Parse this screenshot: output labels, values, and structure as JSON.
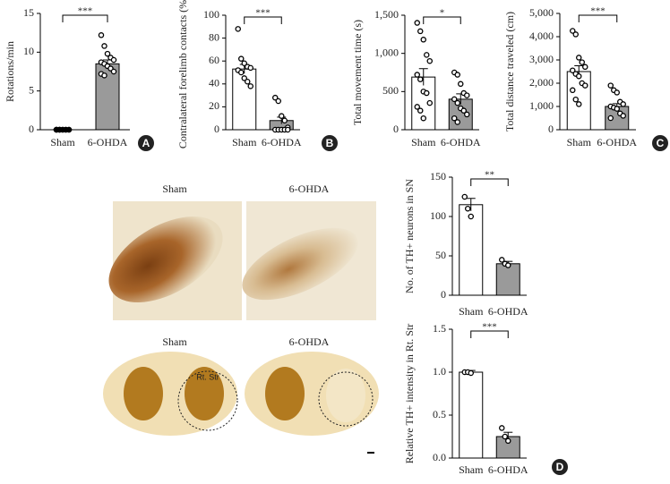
{
  "chart_data": [
    {
      "type": "bar",
      "ylabel": "Rotations/min",
      "categories": [
        "Sham",
        "6-OHDA"
      ],
      "values": [
        0,
        8.5
      ],
      "errors": [
        0,
        0.5
      ],
      "points": [
        [
          0,
          0,
          0,
          0,
          0,
          0,
          0,
          0,
          0,
          0,
          0,
          0
        ],
        [
          12.2,
          10.8,
          9.8,
          9.3,
          9.0,
          8.7,
          8.5,
          8.2,
          7.9,
          7.5,
          7.2,
          7.0
        ]
      ],
      "colors": [
        "#ffffff",
        "#9a9a9a"
      ],
      "ylim": [
        0,
        15
      ],
      "yticks": [
        0,
        5,
        10,
        15
      ],
      "annotation": "***",
      "panel": "A"
    },
    {
      "type": "bar",
      "ylabel": "Contralateral forelimb contacts (%)",
      "categories": [
        "Sham",
        "6-OHDA"
      ],
      "values": [
        53,
        8
      ],
      "errors": [
        4,
        3
      ],
      "points": [
        [
          88,
          62,
          58,
          55,
          54,
          52,
          50,
          45,
          42,
          38
        ],
        [
          28,
          25,
          12,
          8,
          2,
          0,
          0,
          0,
          0,
          0
        ]
      ],
      "colors": [
        "#ffffff",
        "#9a9a9a"
      ],
      "ylim": [
        0,
        100
      ],
      "yticks": [
        0,
        20,
        40,
        60,
        80,
        100
      ],
      "annotation": "***",
      "panel": "B"
    },
    {
      "type": "bar",
      "ylabel": "Total movement time (s)",
      "categories": [
        "Sham",
        "6-OHDA"
      ],
      "values": [
        690,
        400
      ],
      "errors": [
        110,
        70
      ],
      "points": [
        [
          1400,
          1290,
          1180,
          980,
          900,
          720,
          660,
          500,
          480,
          350,
          300,
          250,
          150
        ],
        [
          750,
          720,
          600,
          480,
          450,
          400,
          350,
          280,
          250,
          200,
          150,
          100
        ]
      ],
      "colors": [
        "#ffffff",
        "#9a9a9a"
      ],
      "ylim": [
        0,
        1500
      ],
      "yticks": [
        0,
        500,
        {
          "value": 1000,
          "label": "1,000"
        },
        {
          "value": 1500,
          "label": "1,500"
        }
      ],
      "annotation": "*"
    },
    {
      "type": "bar",
      "ylabel": "Total distance traveled (cm)",
      "categories": [
        "Sham",
        "6-OHDA"
      ],
      "values": [
        2500,
        1000
      ],
      "errors": [
        250,
        120
      ],
      "points": [
        [
          4250,
          4100,
          3100,
          2900,
          2700,
          2550,
          2400,
          2300,
          2000,
          1900,
          1700,
          1300,
          1100
        ],
        [
          1900,
          1700,
          1600,
          1200,
          1100,
          1000,
          950,
          900,
          700,
          600,
          500
        ]
      ],
      "colors": [
        "#ffffff",
        "#9a9a9a"
      ],
      "ylim": [
        0,
        5000
      ],
      "yticks": [
        0,
        {
          "value": 1000,
          "label": "1,000"
        },
        {
          "value": 2000,
          "label": "2,000"
        },
        {
          "value": 3000,
          "label": "3,000"
        },
        {
          "value": 4000,
          "label": "4,000"
        },
        {
          "value": 5000,
          "label": "5,000"
        }
      ],
      "annotation": "***",
      "panel": "C"
    },
    {
      "type": "bar",
      "ylabel": "No. of TH+ neurons in SN",
      "categories": [
        "Sham",
        "6-OHDA"
      ],
      "values": [
        115,
        40
      ],
      "errors": [
        8,
        3
      ],
      "points": [
        [
          125,
          110,
          100
        ],
        [
          45,
          40,
          38
        ]
      ],
      "colors": [
        "#ffffff",
        "#9a9a9a"
      ],
      "ylim": [
        0,
        150
      ],
      "yticks": [
        0,
        50,
        100,
        150
      ],
      "annotation": "**"
    },
    {
      "type": "bar",
      "ylabel": "Relative TH+ intensity in Rt. Str",
      "categories": [
        "Sham",
        "6-OHDA"
      ],
      "values": [
        1.0,
        0.25
      ],
      "errors": [
        0.02,
        0.05
      ],
      "points": [
        [
          1.0,
          1.0,
          0.99
        ],
        [
          0.35,
          0.25,
          0.2
        ]
      ],
      "colors": [
        "#ffffff",
        "#9a9a9a"
      ],
      "ylim": [
        0,
        1.5
      ],
      "yticks": [
        {
          "value": 0,
          "label": "0.0"
        },
        0.5,
        {
          "value": 1,
          "label": "1.0"
        },
        1.5
      ],
      "annotation": "***",
      "panel": "D"
    }
  ],
  "images": {
    "top_labels": [
      "Sham",
      "6-OHDA"
    ],
    "bottom_labels": [
      "Sham",
      "6-OHDA"
    ],
    "region": "Rt. Str"
  }
}
